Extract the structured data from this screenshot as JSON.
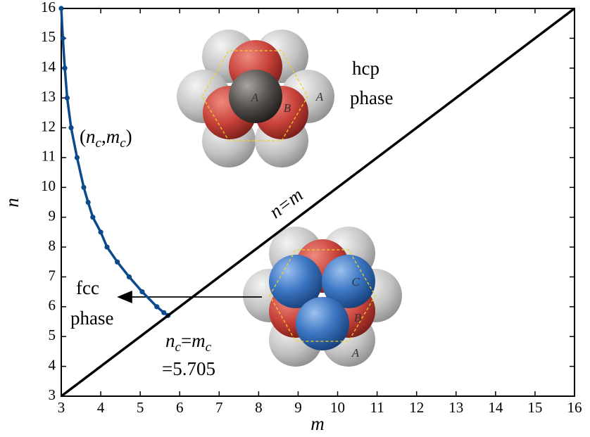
{
  "chart_data": {
    "type": "line",
    "x_label": "m",
    "y_label": "n",
    "xlim": [
      3,
      16
    ],
    "ylim": [
      3,
      16
    ],
    "xticks": [
      3,
      4,
      5,
      6,
      7,
      8,
      9,
      10,
      11,
      12,
      13,
      14,
      15,
      16
    ],
    "yticks": [
      3,
      4,
      5,
      6,
      7,
      8,
      9,
      10,
      11,
      12,
      13,
      14,
      15,
      16
    ],
    "series": [
      {
        "color": "#0b4a8b",
        "markers": true,
        "x": [
          3.0,
          3.04,
          3.09,
          3.15,
          3.25,
          3.4,
          3.57,
          3.68,
          3.8,
          4.0,
          4.16,
          4.42,
          4.72,
          5.05,
          5.42,
          5.6,
          5.705
        ],
        "values": [
          16,
          15,
          14,
          13,
          12,
          11,
          10,
          9.5,
          9,
          8.5,
          8,
          7.5,
          7,
          6.5,
          6,
          5.8,
          5.705
        ]
      },
      {
        "name": "n=m",
        "color": "#000000",
        "markers": false,
        "x": [
          3,
          16
        ],
        "values": [
          3,
          16
        ]
      }
    ],
    "annotations": [
      {
        "runs": [
          {
            "text": "("
          },
          {
            "text": "n",
            "italic": true
          },
          {
            "text": "c",
            "italic": true,
            "sub": true
          },
          {
            "text": ","
          },
          {
            "text": "m",
            "italic": true
          },
          {
            "text": "c",
            "italic": true,
            "sub": true
          },
          {
            "text": ")"
          }
        ]
      },
      {
        "runs": [
          {
            "text": "hcp"
          }
        ]
      },
      {
        "runs": [
          {
            "text": "phase"
          }
        ]
      },
      {
        "runs": [
          {
            "text": "fcc"
          }
        ]
      },
      {
        "runs": [
          {
            "text": "phase"
          }
        ]
      },
      {
        "runs": [
          {
            "text": "n",
            "italic": true
          },
          {
            "text": "c",
            "italic": true,
            "sub": true
          },
          {
            "text": "="
          },
          {
            "text": "m",
            "italic": true
          },
          {
            "text": "c",
            "italic": true,
            "sub": true
          }
        ]
      },
      {
        "runs": [
          {
            "text": "=5.705"
          }
        ]
      }
    ]
  },
  "illustrations": {
    "hcp_labels": [
      "A",
      "B",
      "A"
    ],
    "fcc_labels": [
      "C",
      "B",
      "A"
    ]
  }
}
